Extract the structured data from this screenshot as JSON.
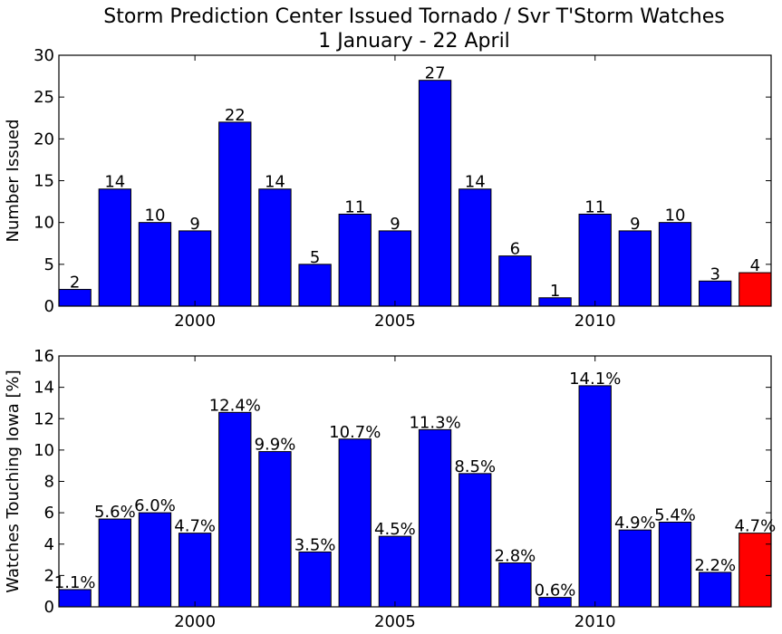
{
  "title_line1": "Storm Prediction Center Issued Tornado / Svr T'Storm Watches",
  "title_line2": "1 January - 22 April",
  "colors": {
    "bar": "#0000ff",
    "highlight": "#ff0000"
  },
  "chart_data": [
    {
      "type": "bar",
      "ylabel": "Number Issued",
      "xlabel": "",
      "x": [
        1997,
        1998,
        1999,
        2000,
        2001,
        2002,
        2003,
        2004,
        2005,
        2006,
        2007,
        2008,
        2009,
        2010,
        2011,
        2012,
        2013,
        2014
      ],
      "values": [
        2,
        14,
        10,
        9,
        22,
        14,
        5,
        11,
        9,
        27,
        14,
        6,
        1,
        11,
        9,
        10,
        3,
        4
      ],
      "data_labels": [
        "2",
        "14",
        "10",
        "9",
        "22",
        "14",
        "5",
        "11",
        "9",
        "27",
        "14",
        "6",
        "1",
        "11",
        "9",
        "10",
        "3",
        "4"
      ],
      "highlight_last": true,
      "ylim": [
        0,
        30
      ],
      "yticks": [
        0,
        5,
        10,
        15,
        20,
        25,
        30
      ],
      "xticks": [
        2000,
        2005,
        2010
      ],
      "xticklabels": [
        "2000",
        "2005",
        "2010"
      ],
      "grid": false
    },
    {
      "type": "bar",
      "ylabel": "Watches Touching Iowa [%]",
      "xlabel": "",
      "x": [
        1997,
        1998,
        1999,
        2000,
        2001,
        2002,
        2003,
        2004,
        2005,
        2006,
        2007,
        2008,
        2009,
        2010,
        2011,
        2012,
        2013,
        2014
      ],
      "values": [
        1.1,
        5.6,
        6.0,
        4.7,
        12.4,
        9.9,
        3.5,
        10.7,
        4.5,
        11.3,
        8.5,
        2.8,
        0.6,
        14.1,
        4.9,
        5.4,
        2.2,
        4.7
      ],
      "data_labels": [
        "1.1%",
        "5.6%",
        "6.0%",
        "4.7%",
        "12.4%",
        "9.9%",
        "3.5%",
        "10.7%",
        "4.5%",
        "11.3%",
        "8.5%",
        "2.8%",
        "0.6%",
        "14.1%",
        "4.9%",
        "5.4%",
        "2.2%",
        "4.7%"
      ],
      "highlight_last": true,
      "ylim": [
        0,
        16
      ],
      "yticks": [
        0,
        2,
        4,
        6,
        8,
        10,
        12,
        14,
        16
      ],
      "xticks": [
        2000,
        2005,
        2010
      ],
      "xticklabels": [
        "2000",
        "2005",
        "2010"
      ],
      "grid": false
    }
  ]
}
